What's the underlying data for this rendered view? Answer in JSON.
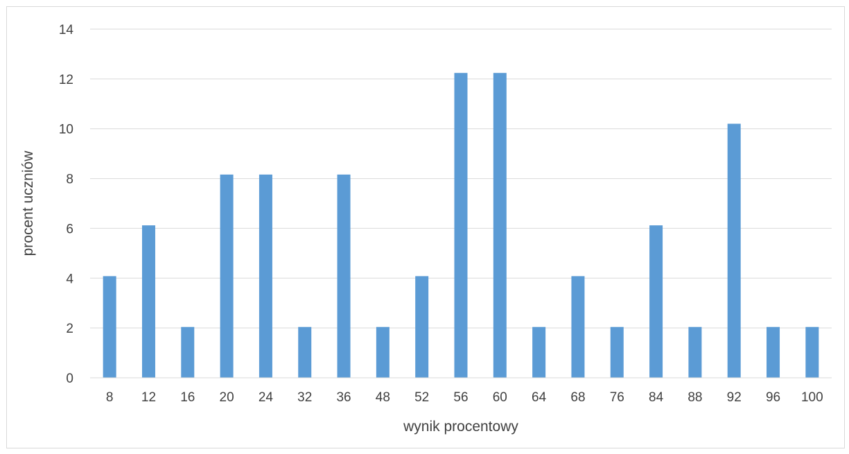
{
  "chart_data": {
    "type": "bar",
    "title": "",
    "xlabel": "wynik procentowy",
    "ylabel": "procent uczniów",
    "categories": [
      "8",
      "12",
      "16",
      "20",
      "24",
      "32",
      "36",
      "48",
      "52",
      "56",
      "60",
      "64",
      "68",
      "76",
      "84",
      "88",
      "92",
      "96",
      "100"
    ],
    "values": [
      4.08,
      6.12,
      2.04,
      8.16,
      8.16,
      2.04,
      8.16,
      2.04,
      4.08,
      12.24,
      12.24,
      2.04,
      4.08,
      2.04,
      6.12,
      2.04,
      10.2,
      2.04,
      2.04
    ],
    "ylim": [
      0,
      14
    ],
    "yticks": [
      0,
      2,
      4,
      6,
      8,
      10,
      12,
      14
    ],
    "grid": "horizontal",
    "legend": "none",
    "colors": {
      "bar": "#5b9bd5",
      "grid": "#d9d9d9",
      "text": "#404040"
    }
  }
}
